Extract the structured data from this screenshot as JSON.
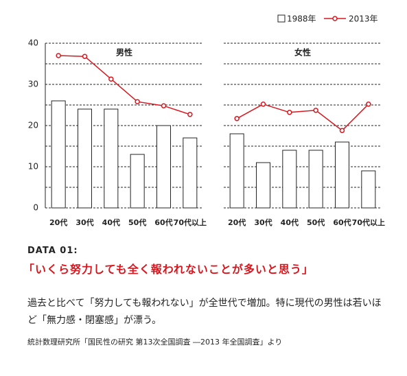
{
  "chart_data": [
    {
      "type": "combo",
      "title": "男性",
      "categories": [
        "20代",
        "30代",
        "40代",
        "50代",
        "60代",
        "70代以上"
      ],
      "series": [
        {
          "name": "1988年",
          "type": "bar",
          "color": "#ffffff",
          "values": [
            26,
            24,
            24,
            13,
            20,
            17
          ]
        },
        {
          "name": "2013年",
          "type": "line",
          "color": "#d7161e",
          "values": [
            37,
            36.8,
            31.3,
            25.8,
            24.8,
            22.7
          ]
        }
      ],
      "ylim": [
        0,
        40
      ],
      "yticks": [
        0,
        10,
        20,
        30,
        40
      ],
      "minor_gridlines": [
        5,
        15,
        25,
        35
      ],
      "grid": true,
      "legend": "top-right"
    },
    {
      "type": "combo",
      "title": "女性",
      "categories": [
        "20代",
        "30代",
        "40代",
        "50代",
        "60代",
        "70代以上"
      ],
      "series": [
        {
          "name": "1988年",
          "type": "bar",
          "color": "#ffffff",
          "values": [
            18,
            11,
            14,
            14,
            16,
            9
          ]
        },
        {
          "name": "2013年",
          "type": "line",
          "color": "#d7161e",
          "values": [
            21.7,
            25.2,
            23.2,
            23.7,
            18.8,
            25.2
          ]
        }
      ],
      "ylim": [
        0,
        40
      ],
      "yticks": [
        0,
        10,
        20,
        30,
        40
      ],
      "minor_gridlines": [
        5,
        15,
        25,
        35
      ],
      "grid": true
    }
  ],
  "text": {
    "label": "DATA 01:",
    "headline": "「いくら努力しても全く報われないことが多いと思う」",
    "body": "過去と比べて「努力しても報われない」が全世代で増加。特に現代の男性は若いほど「無力感・閉塞感」が漂う。",
    "source": "統計数理研究所「国民性の研究 第13次全国調査 ―2013 年全国調査」より"
  }
}
